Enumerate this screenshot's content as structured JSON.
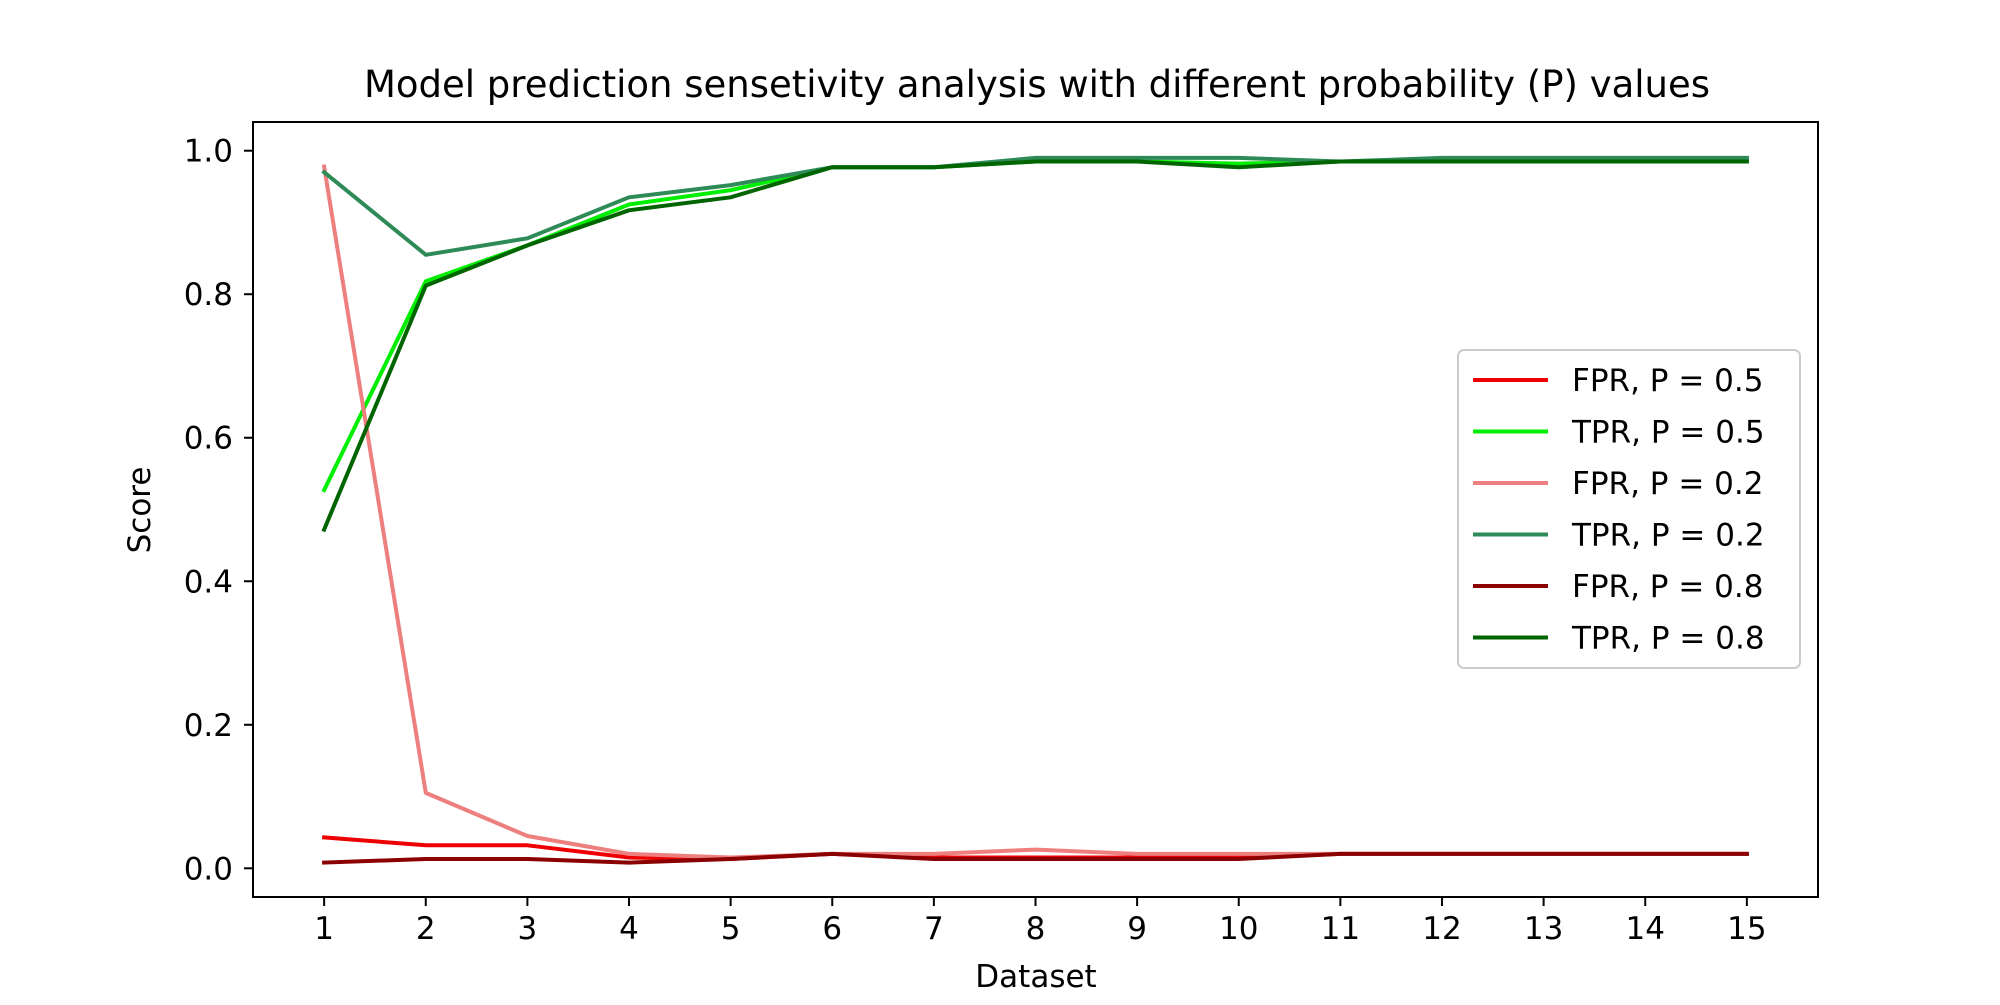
{
  "chart_data": {
    "type": "line",
    "title": "Model prediction sensetivity analysis with different probability (P) values",
    "xlabel": "Dataset",
    "ylabel": "Score",
    "x": [
      1,
      2,
      3,
      4,
      5,
      6,
      7,
      8,
      9,
      10,
      11,
      12,
      13,
      14,
      15
    ],
    "xlim": [
      0.3,
      15.7
    ],
    "ylim": [
      -0.04,
      1.04
    ],
    "yticks": [
      0.0,
      0.2,
      0.4,
      0.6,
      0.8,
      1.0
    ],
    "ytick_labels": [
      "0.0",
      "0.2",
      "0.4",
      "0.6",
      "0.8",
      "1.0"
    ],
    "grid": false,
    "legend_position": "center-right",
    "series": [
      {
        "name": "FPR, P = 0.5",
        "color": "#ee0000",
        "values": [
          0.043,
          0.032,
          0.032,
          0.015,
          0.013,
          0.02,
          0.015,
          0.015,
          0.015,
          0.015,
          0.02,
          0.02,
          0.02,
          0.02,
          0.02
        ]
      },
      {
        "name": "TPR, P = 0.5",
        "color": "#00ee00",
        "values": [
          0.527,
          0.818,
          0.868,
          0.925,
          0.945,
          0.977,
          0.977,
          0.985,
          0.985,
          0.982,
          0.985,
          0.985,
          0.985,
          0.985,
          0.985
        ]
      },
      {
        "name": "FPR, P = 0.2",
        "color": "#ee7f7f",
        "values": [
          0.978,
          0.105,
          0.045,
          0.02,
          0.015,
          0.02,
          0.02,
          0.026,
          0.02,
          0.02,
          0.02,
          0.02,
          0.02,
          0.02,
          0.02
        ]
      },
      {
        "name": "TPR, P = 0.2",
        "color": "#2e8b57",
        "values": [
          0.97,
          0.855,
          0.878,
          0.935,
          0.952,
          0.977,
          0.977,
          0.99,
          0.99,
          0.99,
          0.985,
          0.99,
          0.99,
          0.99,
          0.99
        ]
      },
      {
        "name": "FPR, P = 0.8",
        "color": "#8b0000",
        "values": [
          0.008,
          0.013,
          0.013,
          0.008,
          0.013,
          0.02,
          0.013,
          0.013,
          0.013,
          0.013,
          0.02,
          0.02,
          0.02,
          0.02,
          0.02
        ]
      },
      {
        "name": "TPR, P = 0.8",
        "color": "#006400",
        "values": [
          0.472,
          0.812,
          0.868,
          0.917,
          0.935,
          0.977,
          0.977,
          0.985,
          0.985,
          0.977,
          0.985,
          0.985,
          0.985,
          0.985,
          0.985
        ]
      }
    ]
  }
}
